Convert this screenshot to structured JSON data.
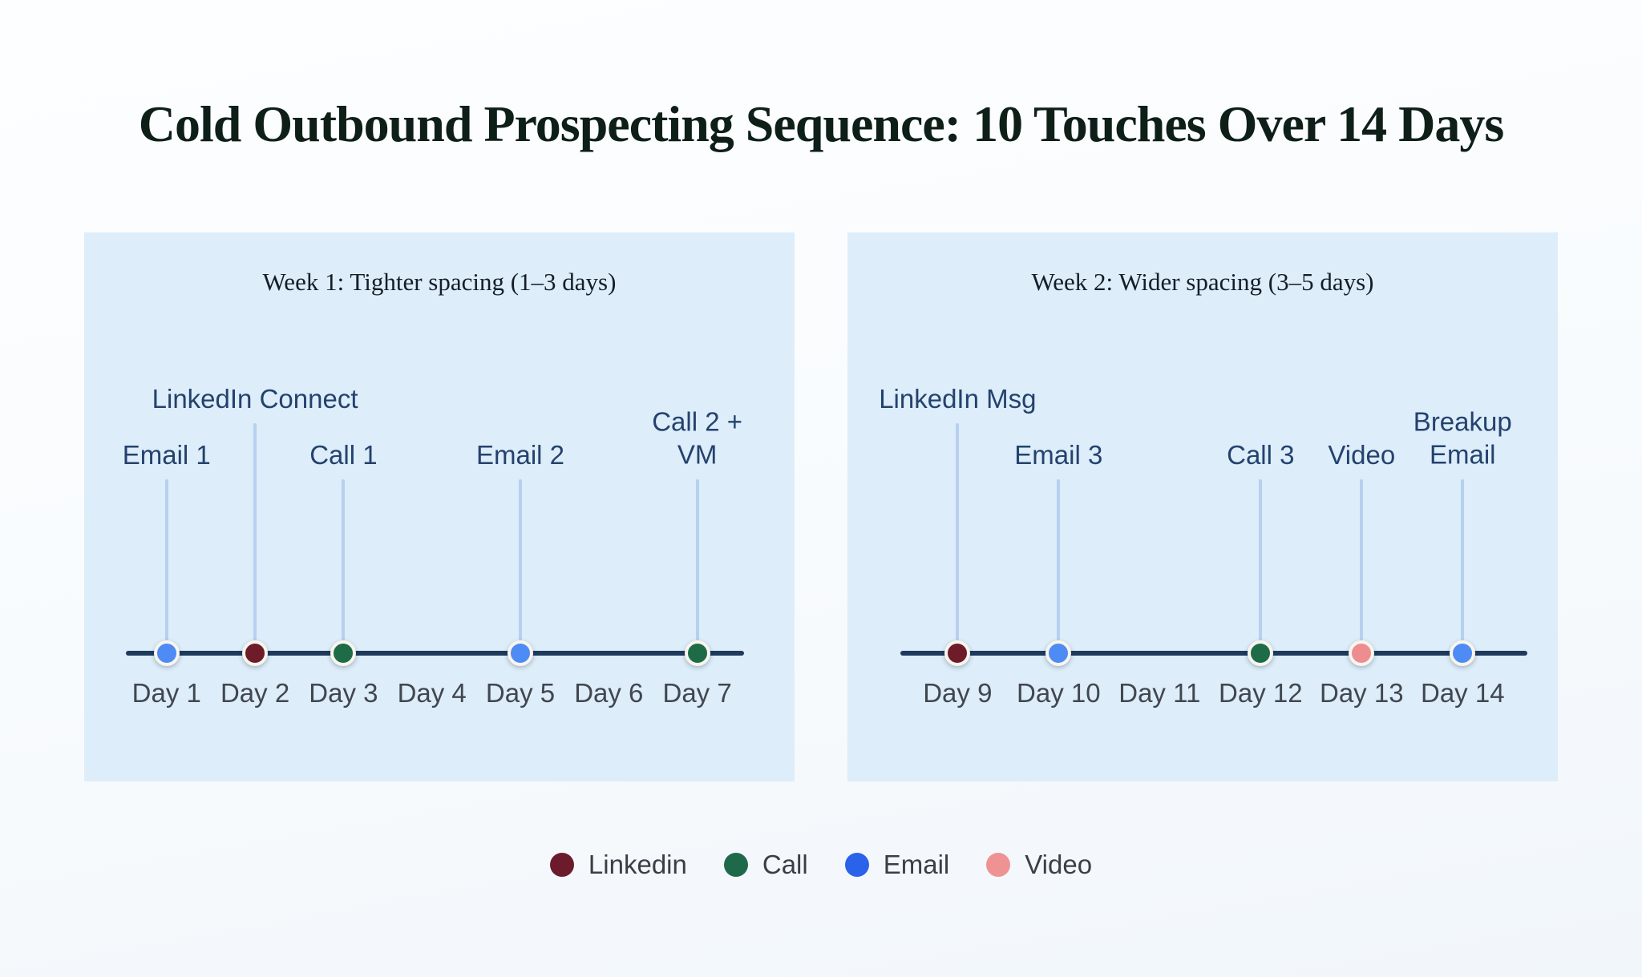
{
  "title": "Cold Outbound Prospecting Sequence: 10 Touches Over 14 Days",
  "colors": {
    "panel_bg": "#ddedf9",
    "timeline_line": "#1e3a5c",
    "connector": "#b7d0f0",
    "dot_ring": "#f8f5ee",
    "touch_label_text": "#24426e",
    "day_label_text": "#41464f",
    "title_text": "#0e1f18",
    "legend_label_text": "#3a3f47",
    "channels": {
      "linkedin": "#6e1c2a",
      "call": "#1e6b48",
      "email": "#4e8bf5",
      "video": "#ee8d8f"
    }
  },
  "panels": [
    {
      "title": "Week 1: Tighter spacing (1–3 days)",
      "days": [
        "Day 1",
        "Day 2",
        "Day 3",
        "Day 4",
        "Day 5",
        "Day 6",
        "Day 7"
      ],
      "touches": [
        {
          "label": "Email 1",
          "day": "Day 1",
          "channel": "email",
          "high": false
        },
        {
          "label": "LinkedIn Connect",
          "day": "Day 2",
          "channel": "linkedin",
          "high": true
        },
        {
          "label": "Call 1",
          "day": "Day 3",
          "channel": "call",
          "high": false
        },
        {
          "label": "Email 2",
          "day": "Day 5",
          "channel": "email",
          "high": false
        },
        {
          "label": "Call 2 +\nVM",
          "day": "Day 7",
          "channel": "call",
          "high": false
        }
      ]
    },
    {
      "title": "Week 2: Wider spacing (3–5 days)",
      "days": [
        "Day 9",
        "Day 10",
        "Day 11",
        "Day 12",
        "Day 13",
        "Day 14"
      ],
      "touches": [
        {
          "label": "LinkedIn Msg",
          "day": "Day 9",
          "channel": "linkedin",
          "high": true
        },
        {
          "label": "Email 3",
          "day": "Day 10",
          "channel": "email",
          "high": false
        },
        {
          "label": "Call 3",
          "day": "Day 12",
          "channel": "call",
          "high": false
        },
        {
          "label": "Video",
          "day": "Day 13",
          "channel": "video",
          "high": false
        },
        {
          "label": "Breakup\nEmail",
          "day": "Day 14",
          "channel": "email",
          "high": false
        }
      ]
    }
  ],
  "legend": [
    {
      "label": "Linkedin",
      "color": "#6b1b2b"
    },
    {
      "label": "Call",
      "color": "#20684a"
    },
    {
      "label": "Email",
      "color": "#2a62e9"
    },
    {
      "label": "Video",
      "color": "#ef9294"
    }
  ]
}
